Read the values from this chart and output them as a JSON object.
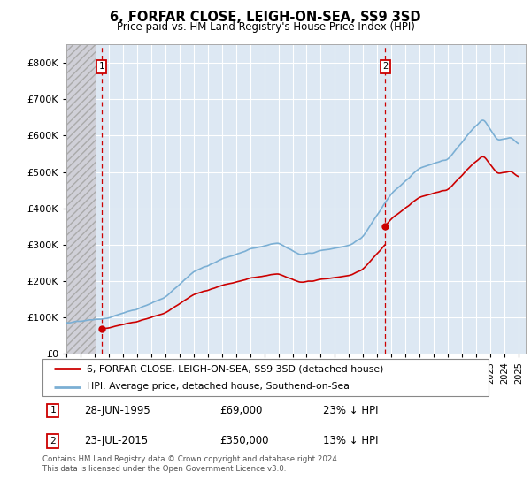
{
  "title": "6, FORFAR CLOSE, LEIGH-ON-SEA, SS9 3SD",
  "subtitle": "Price paid vs. HM Land Registry's House Price Index (HPI)",
  "xlim_start": 1993.0,
  "xlim_end": 2025.5,
  "ylim": [
    0,
    850000
  ],
  "hpi_color": "#7bafd4",
  "price_color": "#cc0000",
  "annotation_box_color": "#cc0000",
  "bg_plot_color": "#dde8f3",
  "grid_color": "#ffffff",
  "transaction1": {
    "date_num": 1995.49,
    "price": 69000,
    "label": "1",
    "date_str": "28-JUN-1995",
    "pct": "23%"
  },
  "transaction2": {
    "date_num": 2015.56,
    "price": 350000,
    "label": "2",
    "date_str": "23-JUL-2015",
    "pct": "13%"
  },
  "legend_label1": "6, FORFAR CLOSE, LEIGH-ON-SEA, SS9 3SD (detached house)",
  "legend_label2": "HPI: Average price, detached house, Southend-on-Sea",
  "footer": "Contains HM Land Registry data © Crown copyright and database right 2024.\nThis data is licensed under the Open Government Licence v3.0.",
  "yticks": [
    0,
    100000,
    200000,
    300000,
    400000,
    500000,
    600000,
    700000,
    800000
  ],
  "ytick_labels": [
    "£0",
    "£100K",
    "£200K",
    "£300K",
    "£400K",
    "£500K",
    "£600K",
    "£700K",
    "£800K"
  ]
}
